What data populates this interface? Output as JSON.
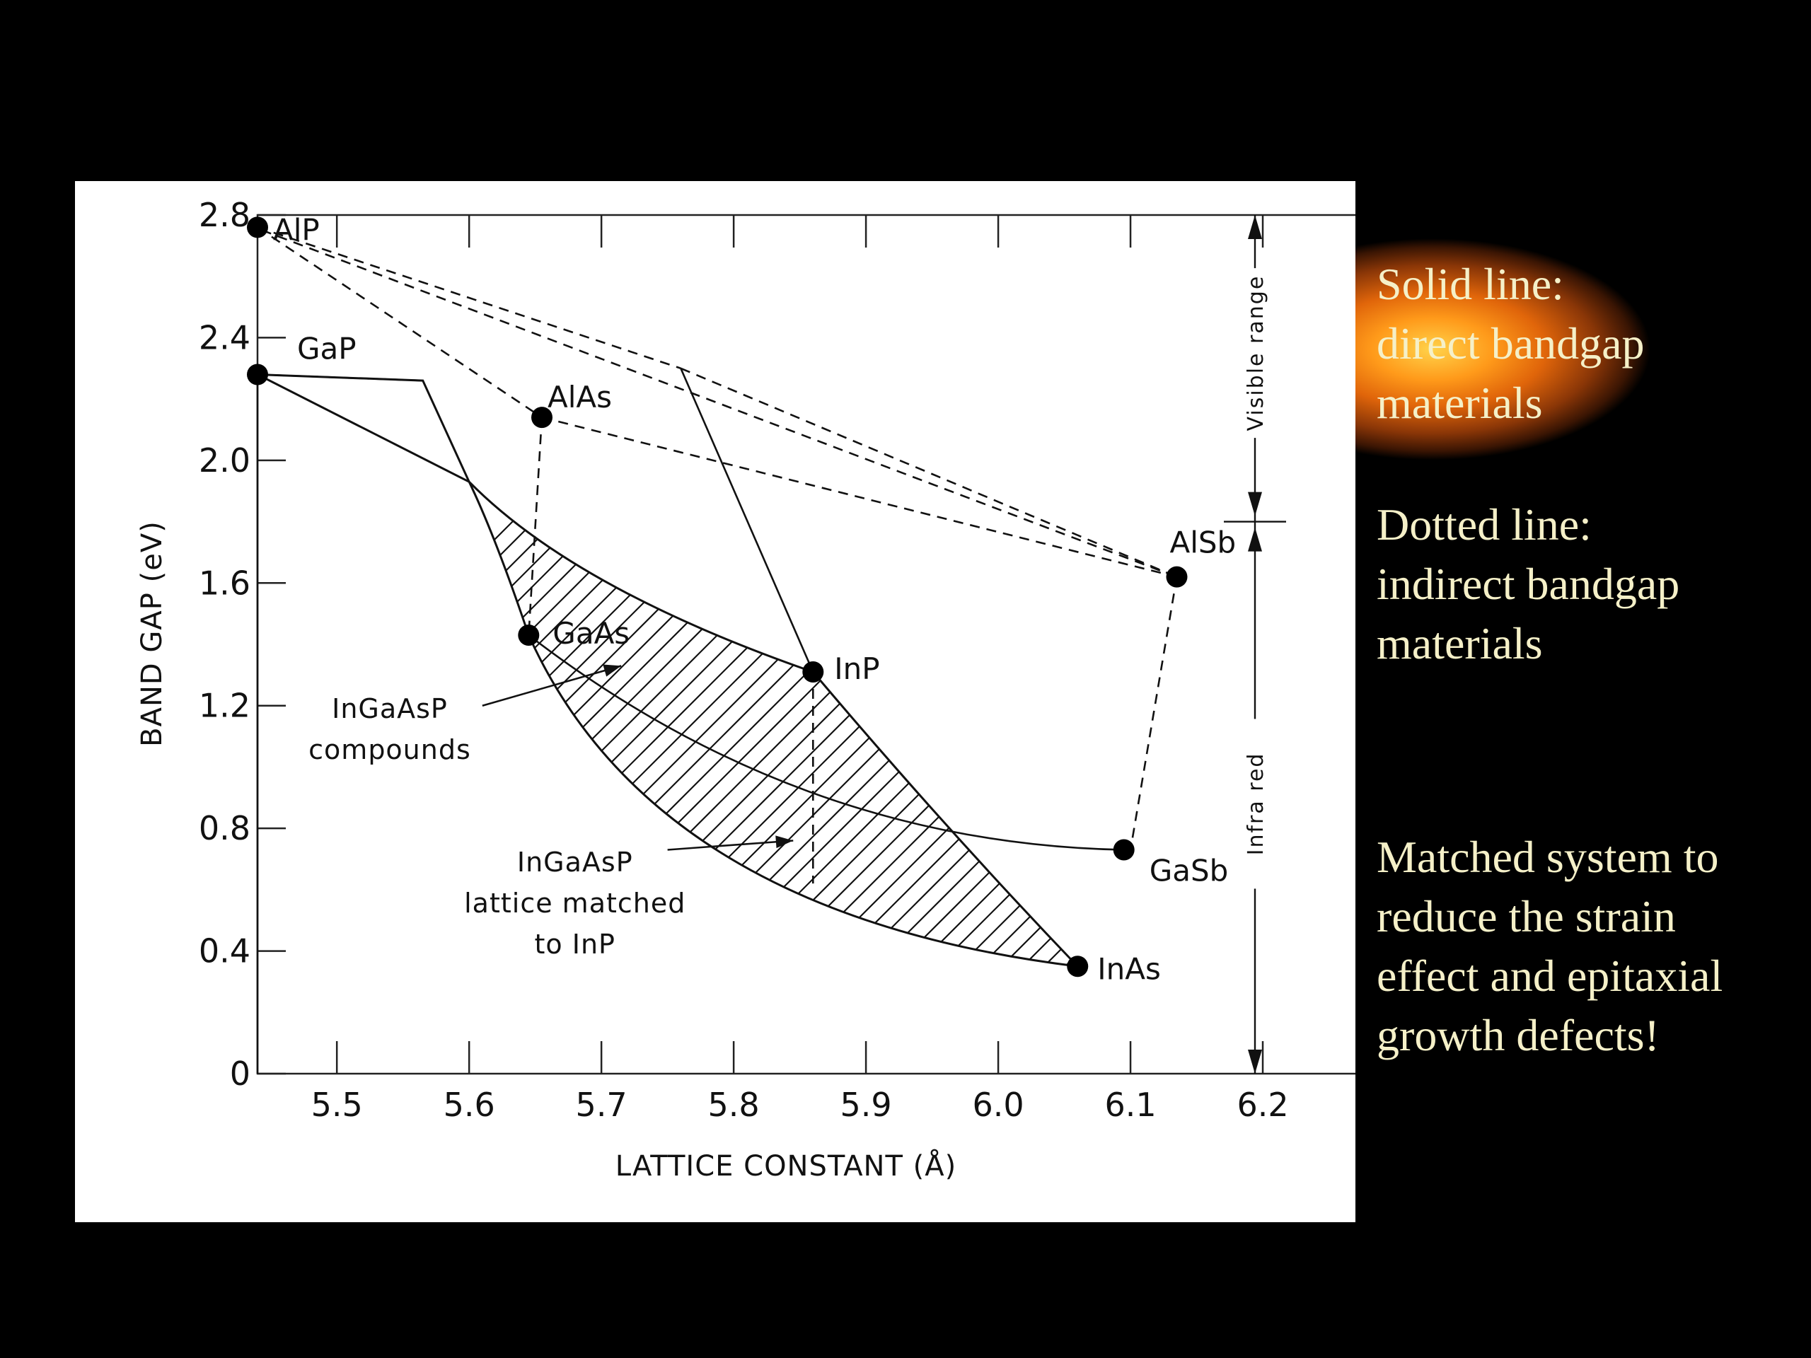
{
  "chart_data": {
    "type": "scatter",
    "xlabel": "LATTICE CONSTANT (Å)",
    "ylabel": "BAND GAP (eV)",
    "xlim": [
      5.44,
      6.3
    ],
    "ylim": [
      0,
      2.8
    ],
    "x_ticks": [
      "5.5",
      "5.6",
      "5.7",
      "5.8",
      "5.9",
      "6.0",
      "6.1",
      "6.2"
    ],
    "y_ticks": [
      "0",
      "0.4",
      "0.8",
      "1.2",
      "1.6",
      "2.0",
      "2.4",
      "2.8"
    ],
    "grid": false,
    "points": [
      {
        "name": "AlP",
        "x": 5.44,
        "y": 2.76
      },
      {
        "name": "GaP",
        "x": 5.44,
        "y": 2.28
      },
      {
        "name": "AlAs",
        "x": 5.655,
        "y": 2.14
      },
      {
        "name": "AlSb",
        "x": 6.135,
        "y": 1.62
      },
      {
        "name": "GaAs",
        "x": 5.645,
        "y": 1.43
      },
      {
        "name": "InP",
        "x": 5.86,
        "y": 1.31
      },
      {
        "name": "GaSb",
        "x": 6.095,
        "y": 0.73
      },
      {
        "name": "InAs",
        "x": 6.06,
        "y": 0.35
      }
    ],
    "annotations": {
      "compounds": "InGaAsP\ncompounds",
      "matched": "InGaAsP\nlattice matched\nto InP",
      "visible": "Visible range",
      "infrared": "Infra red"
    }
  },
  "notes": {
    "solid": "Solid line:\ndirect bandgap\nmaterials",
    "dotted": "Dotted line:\nindirect bandgap\nmaterials",
    "matched": "Matched system to\nreduce the strain\neffect and epitaxial\ngrowth defects!"
  },
  "colors": {
    "background": "#000000",
    "note_text": "#f5f0c8",
    "glow": "#ff9a1a"
  }
}
